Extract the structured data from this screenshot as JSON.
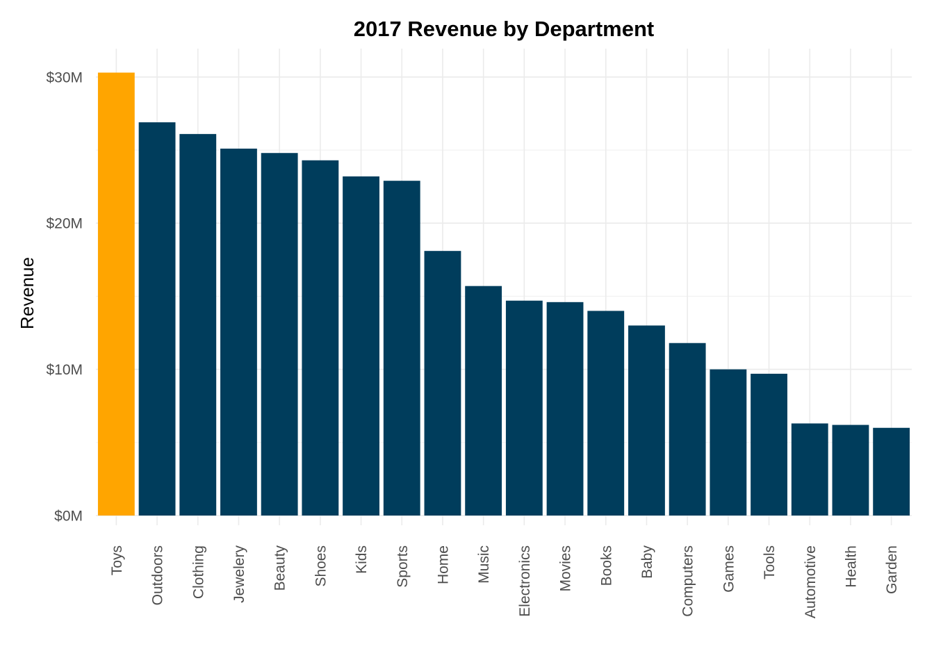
{
  "chart_data": {
    "type": "bar",
    "title": "2017 Revenue by Department",
    "xlabel": "",
    "ylabel": "Revenue",
    "categories": [
      "Toys",
      "Outdoors",
      "Clothing",
      "Jewelery",
      "Beauty",
      "Shoes",
      "Kids",
      "Sports",
      "Home",
      "Music",
      "Electronics",
      "Movies",
      "Books",
      "Baby",
      "Computers",
      "Games",
      "Tools",
      "Automotive",
      "Health",
      "Garden"
    ],
    "values": [
      30.3,
      26.9,
      26.1,
      25.1,
      24.8,
      24.3,
      23.2,
      22.9,
      18.1,
      15.7,
      14.7,
      14.6,
      14.0,
      13.0,
      11.8,
      10.0,
      9.7,
      6.3,
      6.2,
      6.0
    ],
    "value_unit": "millions USD",
    "ylim": [
      0,
      30.3
    ],
    "yticks": [
      0,
      10,
      20,
      30
    ],
    "ytick_labels": [
      "$0M",
      "$10M",
      "$20M",
      "$30M"
    ],
    "highlight_category": "Toys",
    "colors": {
      "highlight": "#FFA500",
      "default": "#003D5C",
      "grid": "#EBEBEB",
      "tick_text": "#4D4D4D"
    },
    "grid": true,
    "legend": "none"
  }
}
